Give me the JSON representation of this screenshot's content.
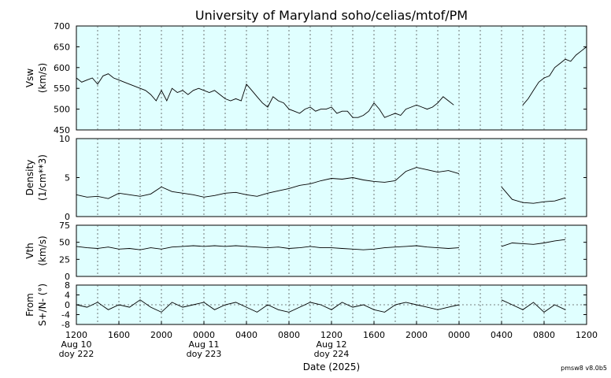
{
  "chart_data": [
    {
      "type": "line",
      "title": "University of Maryland  soho/celias/mtof/PM",
      "xlabel": "Date (2025)",
      "ylabel_lines": [
        "Vsw",
        "(km/s)"
      ],
      "ylim": [
        450,
        700
      ],
      "yticks": [
        "450",
        "500",
        "550",
        "600",
        "650",
        "700"
      ],
      "grid": "vertical dotted",
      "background": "#e0ffff",
      "series": [
        {
          "x": [
            0,
            1,
            2,
            3,
            4,
            5,
            6,
            7,
            8,
            9,
            10,
            11,
            12,
            13,
            14,
            15,
            16,
            17,
            18,
            19,
            20,
            21,
            22,
            23,
            24,
            25,
            26,
            27,
            28,
            29,
            30,
            31,
            32,
            33,
            34,
            35,
            36,
            37,
            38,
            39,
            40,
            41,
            42,
            43,
            44,
            45,
            46,
            47,
            48,
            49,
            50,
            51,
            52,
            53,
            54,
            55,
            56,
            57,
            58,
            59,
            60,
            61,
            62,
            63,
            64,
            65,
            66,
            67,
            68,
            69,
            70,
            71,
            72
          ],
          "values": [
            575,
            565,
            570,
            575,
            560,
            580,
            585,
            575,
            570,
            565,
            560,
            555,
            550,
            545,
            535,
            520,
            545,
            520,
            550,
            540,
            545,
            535,
            545,
            550,
            545,
            540,
            545,
            535,
            525,
            520,
            525,
            520,
            560,
            545,
            530,
            515,
            505,
            530,
            520,
            515,
            500,
            495,
            490,
            500,
            505,
            495,
            500,
            500,
            505,
            490,
            495,
            495,
            480,
            480,
            485,
            495,
            515,
            500,
            480,
            485,
            490,
            485,
            500,
            505,
            510,
            505,
            500,
            505,
            515,
            530,
            520,
            510,
            null
          ],
          "segments_after_gap": {
            "x": [
              84,
              85,
              86,
              87,
              88,
              89,
              90,
              91,
              92,
              93,
              94,
              95,
              96
            ],
            "values": [
              510,
              525,
              545,
              565,
              575,
              580,
              600,
              610,
              620,
              615,
              630,
              640,
              650
            ]
          }
        }
      ]
    },
    {
      "type": "line",
      "ylabel_lines": [
        "Density",
        "(1/cm**3)"
      ],
      "ylim": [
        0,
        10
      ],
      "yticks": [
        "0",
        "5",
        "10"
      ],
      "series": [
        {
          "x": [
            0,
            2,
            4,
            6,
            8,
            10,
            12,
            14,
            16,
            18,
            20,
            22,
            24,
            26,
            28,
            30,
            32,
            34,
            36,
            38,
            40,
            42,
            44,
            46,
            48,
            50,
            52,
            54,
            56,
            58,
            60,
            62,
            64,
            66,
            68,
            70,
            72
          ],
          "values": [
            2.8,
            2.5,
            2.6,
            2.3,
            3.0,
            2.8,
            2.6,
            2.9,
            3.8,
            3.2,
            3.0,
            2.8,
            2.5,
            2.7,
            3.0,
            3.1,
            2.8,
            2.6,
            3.0,
            3.3,
            3.6,
            4.0,
            4.2,
            4.6,
            4.9,
            4.8,
            5.0,
            4.7,
            4.5,
            4.4,
            4.6,
            5.8,
            6.3,
            6.0,
            5.7,
            5.9,
            5.5
          ],
          "segments_after_gap": {
            "x": [
              80,
              82,
              84,
              86,
              88,
              90,
              92
            ],
            "values": [
              3.8,
              2.2,
              1.8,
              1.7,
              1.9,
              2.0,
              2.4
            ]
          }
        }
      ]
    },
    {
      "type": "line",
      "ylabel_lines": [
        "Vth",
        "(km/s)"
      ],
      "ylim": [
        0,
        75
      ],
      "yticks": [
        "0",
        "25",
        "50",
        "75"
      ],
      "series": [
        {
          "x": [
            0,
            2,
            4,
            6,
            8,
            10,
            12,
            14,
            16,
            18,
            20,
            22,
            24,
            26,
            28,
            30,
            32,
            34,
            36,
            38,
            40,
            42,
            44,
            46,
            48,
            50,
            52,
            54,
            56,
            58,
            60,
            62,
            64,
            66,
            68,
            70,
            72
          ],
          "values": [
            44,
            42,
            41,
            43,
            40,
            41,
            39,
            42,
            40,
            43,
            44,
            45,
            44,
            45,
            44,
            45,
            44,
            43,
            42,
            43,
            41,
            42,
            44,
            42,
            42,
            41,
            40,
            39,
            40,
            42,
            43,
            44,
            45,
            43,
            42,
            41,
            42
          ],
          "segments_after_gap": {
            "x": [
              80,
              82,
              84,
              86,
              88,
              90,
              92
            ],
            "values": [
              44,
              49,
              48,
              47,
              49,
              52,
              54
            ]
          }
        }
      ]
    },
    {
      "type": "line",
      "ylabel_lines": [
        "From",
        "S+/N- (°)"
      ],
      "ylim": [
        -8,
        8
      ],
      "yticks": [
        "8",
        "4",
        "0",
        "-4",
        "-8"
      ],
      "series": [
        {
          "x": [
            0,
            2,
            4,
            6,
            8,
            10,
            12,
            14,
            16,
            18,
            20,
            22,
            24,
            26,
            28,
            30,
            32,
            34,
            36,
            38,
            40,
            42,
            44,
            46,
            48,
            50,
            52,
            54,
            56,
            58,
            60,
            62,
            64,
            66,
            68,
            70,
            72
          ],
          "values": [
            0,
            -1,
            1,
            -2,
            0,
            -1,
            2,
            -1,
            -3,
            1,
            -1,
            0,
            1,
            -2,
            0,
            1,
            -1,
            -3,
            0,
            -2,
            -3,
            -1,
            1,
            0,
            -2,
            1,
            -1,
            0,
            -2,
            -3,
            0,
            1,
            0,
            -1,
            -2,
            -1,
            0
          ],
          "segments_after_gap": {
            "x": [
              80,
              82,
              84,
              86,
              88,
              90,
              92
            ],
            "values": [
              2,
              0,
              -2,
              1,
              -3,
              0,
              -2
            ]
          }
        }
      ]
    }
  ],
  "x_axis": {
    "hours_range": [
      0,
      96
    ],
    "tick_labels": [
      "1200",
      "1600",
      "2000",
      "0000",
      "0400",
      "0800",
      "1200",
      "1600",
      "2000",
      "0000",
      "0400",
      "0800",
      "1200"
    ],
    "date_labels": [
      {
        "line1": "Aug 10",
        "line2": "doy 222",
        "at": 0
      },
      {
        "line1": "Aug 11",
        "line2": "doy 223",
        "at": 24
      },
      {
        "line1": "Aug 12",
        "line2": "doy 224",
        "at": 48
      }
    ]
  },
  "version_label": "pmsw8 v8.0b5"
}
